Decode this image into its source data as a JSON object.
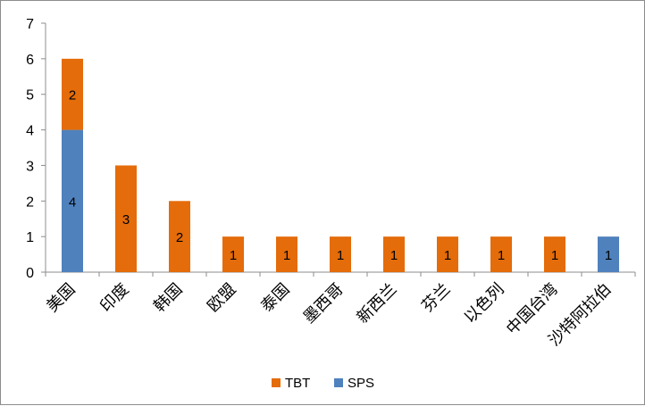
{
  "chart_data": {
    "type": "bar",
    "stacked": true,
    "categories": [
      "美国",
      "印度",
      "韩国",
      "欧盟",
      "泰国",
      "墨西哥",
      "新西兰",
      "芬兰",
      "以色列",
      "中国台湾",
      "沙特阿拉伯"
    ],
    "series": [
      {
        "name": "SPS",
        "color": "#4f81bd",
        "values": [
          4,
          0,
          0,
          0,
          0,
          0,
          0,
          0,
          0,
          0,
          1
        ]
      },
      {
        "name": "TBT",
        "color": "#e46c0a",
        "values": [
          2,
          3,
          2,
          1,
          1,
          1,
          1,
          1,
          1,
          1,
          0
        ]
      }
    ],
    "y_ticks": [
      "0",
      "1",
      "2",
      "3",
      "4",
      "5",
      "6",
      "7"
    ],
    "ylim": [
      0,
      7
    ],
    "grid": false,
    "legend": {
      "placement": "bottom",
      "entries": [
        "TBT",
        "SPS"
      ]
    },
    "title": "",
    "xlabel": "",
    "ylabel": ""
  }
}
